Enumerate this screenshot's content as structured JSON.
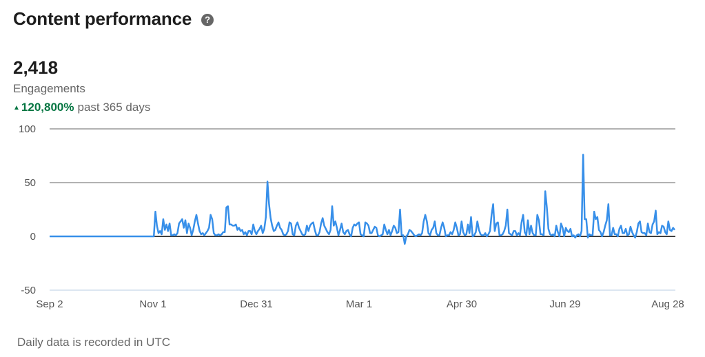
{
  "header": {
    "title": "Content performance",
    "help_icon": "question-circle-icon"
  },
  "metric": {
    "value": "2,418",
    "label": "Engagements",
    "change_arrow": "▲",
    "change_pct": "120,800%",
    "change_period": "past 365 days",
    "change_color": "#057642"
  },
  "footnote": "Daily data is recorded in UTC",
  "chart_data": {
    "type": "line",
    "title": "",
    "xlabel": "",
    "ylabel": "Engagements",
    "ylim": [
      -50,
      100
    ],
    "yticks": [
      100,
      50,
      0,
      -50
    ],
    "xticks": [
      "Sep 2",
      "Nov 1",
      "Dec 31",
      "Mar 1",
      "Apr 30",
      "Jun 29",
      "Aug 28"
    ],
    "grid": true,
    "legend": null,
    "line_color": "#378fe9",
    "series": [
      {
        "name": "Engagements",
        "start_date": "Sep 2",
        "end_date": "Aug 28",
        "note": "daily values, approximated from pixels; zero from Sep 2 until ~Nov 10",
        "values": [
          0,
          0,
          0,
          0,
          0,
          0,
          0,
          0,
          0,
          0,
          0,
          0,
          0,
          0,
          0,
          0,
          0,
          0,
          0,
          0,
          0,
          0,
          0,
          0,
          0,
          0,
          0,
          0,
          0,
          0,
          0,
          0,
          0,
          0,
          0,
          0,
          0,
          0,
          0,
          0,
          0,
          0,
          0,
          0,
          0,
          0,
          0,
          0,
          0,
          0,
          0,
          0,
          0,
          0,
          0,
          0,
          0,
          0,
          0,
          0,
          0,
          0,
          0,
          0,
          0,
          0,
          0,
          23,
          10,
          3,
          5,
          2,
          16,
          6,
          11,
          5,
          12,
          1,
          1,
          2,
          1,
          3,
          12,
          14,
          16,
          8,
          15,
          3,
          12,
          8,
          1,
          6,
          14,
          20,
          12,
          5,
          2,
          3,
          1,
          3,
          5,
          8,
          20,
          16,
          3,
          1,
          1,
          2,
          1,
          2,
          4,
          4,
          27,
          28,
          11,
          11,
          10,
          10,
          11,
          6,
          8,
          5,
          6,
          2,
          4,
          1,
          5,
          5,
          2,
          11,
          5,
          2,
          5,
          7,
          10,
          3,
          7,
          18,
          51,
          30,
          17,
          10,
          5,
          6,
          10,
          13,
          8,
          6,
          2,
          1,
          2,
          5,
          13,
          12,
          2,
          1,
          10,
          13,
          8,
          5,
          2,
          1,
          2,
          10,
          5,
          10,
          12,
          13,
          6,
          1,
          1,
          4,
          12,
          17,
          10,
          7,
          4,
          2,
          6,
          28,
          10,
          14,
          8,
          1,
          6,
          12,
          4,
          2,
          5,
          6,
          2,
          0,
          8,
          11,
          10,
          12,
          13,
          2,
          1,
          0,
          13,
          12,
          10,
          3,
          3,
          6,
          9,
          8,
          1,
          0,
          1,
          2,
          11,
          6,
          2,
          6,
          1,
          5,
          10,
          8,
          3,
          4,
          25,
          1,
          1,
          -7,
          0,
          2,
          6,
          5,
          3,
          1,
          0,
          1,
          2,
          1,
          3,
          14,
          20,
          14,
          3,
          1,
          6,
          8,
          14,
          3,
          1,
          1,
          8,
          13,
          8,
          0,
          1,
          1,
          4,
          2,
          6,
          13,
          8,
          1,
          2,
          14,
          4,
          1,
          2,
          11,
          3,
          18,
          0,
          1,
          4,
          14,
          6,
          2,
          1,
          1,
          3,
          0,
          2,
          5,
          20,
          30,
          5,
          12,
          13,
          1,
          1,
          2,
          5,
          10,
          25,
          3,
          2,
          1,
          5,
          5,
          1,
          3,
          1,
          13,
          20,
          4,
          1,
          15,
          2,
          10,
          3,
          1,
          1,
          20,
          15,
          2,
          2,
          1,
          42,
          27,
          7,
          2,
          1,
          2,
          0,
          10,
          4,
          0,
          12,
          8,
          0,
          8,
          5,
          4,
          7,
          0,
          1,
          -1,
          1,
          2,
          0,
          5,
          76,
          16,
          16,
          -1,
          2,
          1,
          1,
          23,
          16,
          18,
          6,
          4,
          0,
          4,
          10,
          15,
          30,
          1,
          1,
          8,
          2,
          2,
          0,
          7,
          10,
          3,
          3,
          7,
          1,
          2,
          9,
          4,
          1,
          -1,
          4,
          12,
          14,
          4,
          3,
          3,
          1,
          12,
          4,
          3,
          11,
          14,
          24,
          2,
          4,
          3,
          10,
          9,
          4,
          2,
          14,
          6,
          5,
          8,
          6
        ]
      }
    ]
  }
}
